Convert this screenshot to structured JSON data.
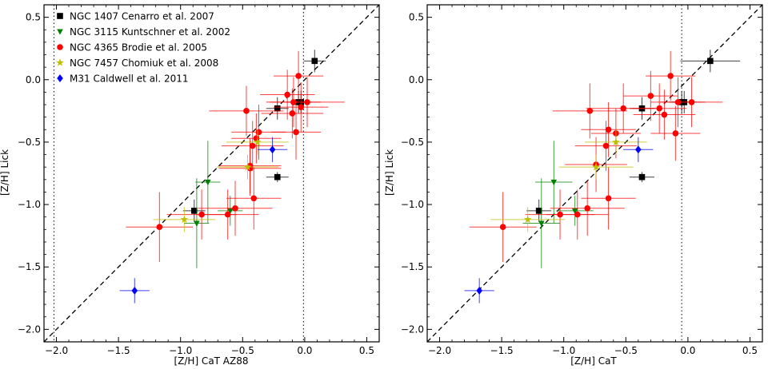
{
  "chart_data": [
    {
      "type": "scatter",
      "xlabel": "[Z/H] CaT AZ88",
      "ylabel": "[Z/H] Lick",
      "xlim": [
        -2.1,
        0.6
      ],
      "ylim": [
        -2.1,
        0.6
      ],
      "xticks": [
        -2.0,
        -1.5,
        -1.0,
        -0.5,
        0.0,
        0.5
      ],
      "yticks": [
        -2.0,
        -1.5,
        -1.0,
        -0.5,
        0.0,
        0.5
      ],
      "xtick_labels": [
        "−2.0",
        "−1.5",
        "−1.0",
        "−0.5",
        "0.0",
        "0.5"
      ],
      "ytick_labels": [
        "−2.0",
        "−1.5",
        "−1.0",
        "−0.5",
        "0.0",
        "0.5"
      ],
      "reference_lines": {
        "one_to_one": true,
        "vertical_dotted": [
          -2.02,
          -0.01
        ]
      },
      "legend_position": "top-left",
      "series": [
        {
          "name": "NGC 1407 Cenarro et al. 2007",
          "marker": "square",
          "color": "#000000",
          "points": [
            {
              "x": 0.08,
              "y": 0.15,
              "xerr": 0.09,
              "yerr": 0.09
            },
            {
              "x": -0.03,
              "y": -0.18,
              "xerr": 0.09,
              "yerr": 0.09
            },
            {
              "x": -0.05,
              "y": -0.18,
              "xerr": 0.09,
              "yerr": 0.09
            },
            {
              "x": -0.22,
              "y": -0.23,
              "xerr": 0.09,
              "yerr": 0.09
            },
            {
              "x": -0.22,
              "y": -0.78,
              "xerr": 0.09,
              "yerr": 0.04
            },
            {
              "x": -0.89,
              "y": -1.05,
              "xerr": 0.09,
              "yerr": 0.09
            }
          ]
        },
        {
          "name": "NGC 3115 Kuntschner et al. 2002",
          "marker": "triangle-down",
          "color": "#008000",
          "points": [
            {
              "x": -0.78,
              "y": -0.82,
              "xerr": 0.1,
              "yerr": 0.33
            },
            {
              "x": -0.6,
              "y": -1.05,
              "xerr": 0.1,
              "yerr": 0.12
            },
            {
              "x": -0.87,
              "y": -1.15,
              "xerr": 0.1,
              "yerr": 0.36
            }
          ]
        },
        {
          "name": "NGC 4365 Brodie et al. 2005",
          "marker": "circle",
          "color": "#ff0000",
          "points": [
            {
              "x": -0.05,
              "y": 0.03,
              "xerr": 0.2,
              "yerr": 0.2
            },
            {
              "x": -0.09,
              "y": -0.18,
              "xerr": 0.22,
              "yerr": 0.2
            },
            {
              "x": 0.02,
              "y": -0.18,
              "xerr": 0.3,
              "yerr": 0.2
            },
            {
              "x": -0.14,
              "y": -0.12,
              "xerr": 0.22,
              "yerr": 0.2
            },
            {
              "x": -0.03,
              "y": -0.22,
              "xerr": 0.22,
              "yerr": 0.2
            },
            {
              "x": -0.1,
              "y": -0.27,
              "xerr": 0.25,
              "yerr": 0.2
            },
            {
              "x": -0.47,
              "y": -0.25,
              "xerr": 0.3,
              "yerr": 0.2
            },
            {
              "x": -0.37,
              "y": -0.42,
              "xerr": 0.22,
              "yerr": 0.22
            },
            {
              "x": -0.07,
              "y": -0.42,
              "xerr": 0.2,
              "yerr": 0.22
            },
            {
              "x": -0.39,
              "y": -0.47,
              "xerr": 0.2,
              "yerr": 0.2
            },
            {
              "x": -0.42,
              "y": -0.53,
              "xerr": 0.25,
              "yerr": 0.2
            },
            {
              "x": -0.44,
              "y": -0.69,
              "xerr": 0.25,
              "yerr": 0.22
            },
            {
              "x": -0.44,
              "y": -0.71,
              "xerr": 0.25,
              "yerr": 0.22
            },
            {
              "x": -0.41,
              "y": -0.95,
              "xerr": 0.22,
              "yerr": 0.25
            },
            {
              "x": -0.56,
              "y": -1.03,
              "xerr": 0.3,
              "yerr": 0.22
            },
            {
              "x": -0.62,
              "y": -1.08,
              "xerr": 0.25,
              "yerr": 0.2
            },
            {
              "x": -0.83,
              "y": -1.08,
              "xerr": 0.28,
              "yerr": 0.2
            },
            {
              "x": -1.17,
              "y": -1.18,
              "xerr": 0.27,
              "yerr": 0.28
            }
          ]
        },
        {
          "name": "NGC 7457 Chomiuk et al. 2008",
          "marker": "star",
          "color": "#bfbf00",
          "points": [
            {
              "x": -0.38,
              "y": -0.5,
              "xerr": 0.25,
              "yerr": 0.1
            },
            {
              "x": -0.46,
              "y": -0.7,
              "xerr": 0.25,
              "yerr": 0.1
            },
            {
              "x": -0.97,
              "y": -1.12,
              "xerr": 0.25,
              "yerr": 0.1
            }
          ]
        },
        {
          "name": "M31 Caldwell et al. 2011",
          "marker": "diamond",
          "color": "#0000ff",
          "points": [
            {
              "x": -0.26,
              "y": -0.56,
              "xerr": 0.12,
              "yerr": 0.1
            },
            {
              "x": -1.37,
              "y": -1.69,
              "xerr": 0.12,
              "yerr": 0.1
            }
          ]
        }
      ]
    },
    {
      "type": "scatter",
      "xlabel": "[Z/H] CaT",
      "ylabel": "[Z/H] Lick",
      "xlim": [
        -2.1,
        0.6
      ],
      "ylim": [
        -2.1,
        0.6
      ],
      "xticks": [
        -2.0,
        -1.5,
        -1.0,
        -0.5,
        0.0,
        0.5
      ],
      "yticks": [
        -2.0,
        -1.5,
        -1.0,
        -0.5,
        0.0,
        0.5
      ],
      "xtick_labels": [
        "−2.0",
        "−1.5",
        "−1.0",
        "−0.5",
        "0.0",
        "0.5"
      ],
      "ytick_labels": [
        "−2.0",
        "−1.5",
        "−1.0",
        "−0.5",
        "0.0",
        "0.5"
      ],
      "reference_lines": {
        "one_to_one": true,
        "vertical_dotted": [
          -0.05
        ]
      },
      "series": [
        {
          "name": "NGC 1407 Cenarro et al. 2007",
          "marker": "square",
          "color": "#000000",
          "points": [
            {
              "x": 0.18,
              "y": 0.15,
              "xerr": 0.24,
              "yerr": 0.09
            },
            {
              "x": -0.05,
              "y": -0.18,
              "xerr": 0.1,
              "yerr": 0.09
            },
            {
              "x": -0.03,
              "y": -0.18,
              "xerr": 0.1,
              "yerr": 0.09
            },
            {
              "x": -0.37,
              "y": -0.23,
              "xerr": 0.1,
              "yerr": 0.09
            },
            {
              "x": -0.37,
              "y": -0.78,
              "xerr": 0.1,
              "yerr": 0.04
            },
            {
              "x": -1.2,
              "y": -1.05,
              "xerr": 0.1,
              "yerr": 0.09
            }
          ]
        },
        {
          "name": "NGC 3115 Kuntschner et al. 2002",
          "marker": "triangle-down",
          "color": "#008000",
          "points": [
            {
              "x": -1.08,
              "y": -0.82,
              "xerr": 0.15,
              "yerr": 0.33
            },
            {
              "x": -0.91,
              "y": -1.05,
              "xerr": 0.15,
              "yerr": 0.12
            },
            {
              "x": -1.18,
              "y": -1.15,
              "xerr": 0.15,
              "yerr": 0.36
            }
          ]
        },
        {
          "name": "NGC 4365 Brodie et al. 2005",
          "marker": "circle",
          "color": "#ff0000",
          "points": [
            {
              "x": -0.14,
              "y": 0.03,
              "xerr": 0.2,
              "yerr": 0.2
            },
            {
              "x": -0.08,
              "y": -0.18,
              "xerr": 0.22,
              "yerr": 0.2
            },
            {
              "x": 0.03,
              "y": -0.18,
              "xerr": 0.25,
              "yerr": 0.2
            },
            {
              "x": -0.3,
              "y": -0.13,
              "xerr": 0.22,
              "yerr": 0.2
            },
            {
              "x": -0.23,
              "y": -0.23,
              "xerr": 0.22,
              "yerr": 0.2
            },
            {
              "x": -0.19,
              "y": -0.28,
              "xerr": 0.25,
              "yerr": 0.2
            },
            {
              "x": -0.52,
              "y": -0.23,
              "xerr": 0.3,
              "yerr": 0.2
            },
            {
              "x": -0.79,
              "y": -0.25,
              "xerr": 0.3,
              "yerr": 0.22
            },
            {
              "x": -0.64,
              "y": -0.4,
              "xerr": 0.22,
              "yerr": 0.22
            },
            {
              "x": -0.58,
              "y": -0.43,
              "xerr": 0.2,
              "yerr": 0.2
            },
            {
              "x": -0.1,
              "y": -0.43,
              "xerr": 0.2,
              "yerr": 0.22
            },
            {
              "x": -0.66,
              "y": -0.53,
              "xerr": 0.25,
              "yerr": 0.2
            },
            {
              "x": -0.74,
              "y": -0.68,
              "xerr": 0.25,
              "yerr": 0.22
            },
            {
              "x": -0.64,
              "y": -0.95,
              "xerr": 0.22,
              "yerr": 0.25
            },
            {
              "x": -0.81,
              "y": -1.03,
              "xerr": 0.3,
              "yerr": 0.22
            },
            {
              "x": -0.89,
              "y": -1.08,
              "xerr": 0.25,
              "yerr": 0.2
            },
            {
              "x": -1.03,
              "y": -1.08,
              "xerr": 0.28,
              "yerr": 0.2
            },
            {
              "x": -1.49,
              "y": -1.18,
              "xerr": 0.27,
              "yerr": 0.28
            }
          ]
        },
        {
          "name": "NGC 7457 Chomiuk et al. 2008",
          "marker": "star",
          "color": "#bfbf00",
          "points": [
            {
              "x": -0.58,
              "y": -0.5,
              "xerr": 0.25,
              "yerr": 0.1
            },
            {
              "x": -0.74,
              "y": -0.7,
              "xerr": 0.3,
              "yerr": 0.1
            },
            {
              "x": -1.29,
              "y": -1.12,
              "xerr": 0.3,
              "yerr": 0.1
            }
          ]
        },
        {
          "name": "M31 Caldwell et al. 2011",
          "marker": "diamond",
          "color": "#0000ff",
          "points": [
            {
              "x": -0.4,
              "y": -0.56,
              "xerr": 0.12,
              "yerr": 0.1
            },
            {
              "x": -1.68,
              "y": -1.69,
              "xerr": 0.12,
              "yerr": 0.1
            }
          ]
        }
      ]
    }
  ]
}
